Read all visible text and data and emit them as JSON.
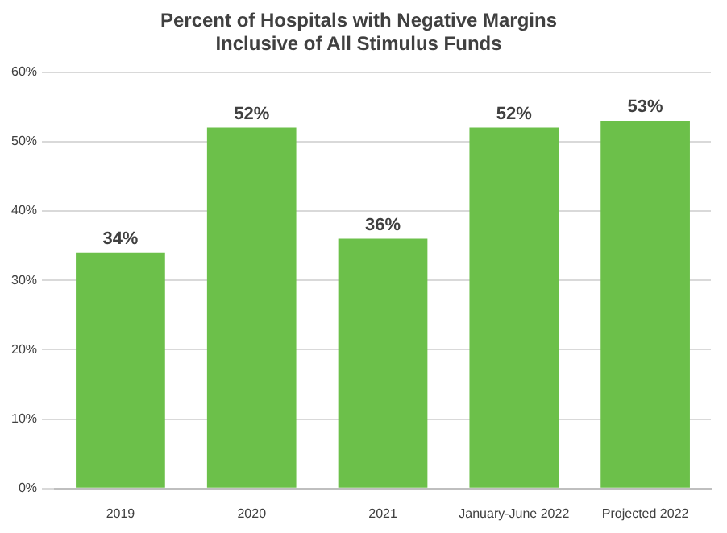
{
  "chart_data": {
    "type": "bar",
    "title": "Percent of Hospitals with Negative Margins\nInclusive of All Stimulus Funds",
    "categories": [
      "2019",
      "2020",
      "2021",
      "January-June 2022",
      "Projected 2022"
    ],
    "values": [
      34,
      52,
      36,
      52,
      53
    ],
    "color": "#6cc04a",
    "value_labels": [
      "34%",
      "52%",
      "36%",
      "52%",
      "53%"
    ],
    "ylim": [
      0,
      60
    ],
    "yticks": [
      {
        "value": 0,
        "label": "0%"
      },
      {
        "value": 10,
        "label": "10%"
      },
      {
        "value": 20,
        "label": "20%"
      },
      {
        "value": 30,
        "label": "30%"
      },
      {
        "value": 40,
        "label": "40%"
      },
      {
        "value": 50,
        "label": "50%"
      },
      {
        "value": 60,
        "label": "60%"
      }
    ],
    "grid": "y",
    "legend": false
  }
}
